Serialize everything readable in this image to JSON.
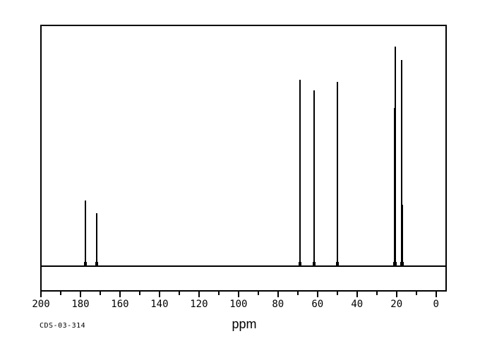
{
  "meta": {
    "sample_id": "CDS-03-314"
  },
  "colors": {
    "line": "#000000",
    "background": "#ffffff"
  },
  "chart_data": {
    "type": "line",
    "subtype": "nmr-spectrum",
    "title": "",
    "xlabel": "ppm",
    "ylabel": "",
    "x_axis": {
      "min": 0,
      "max": 200,
      "reversed": true,
      "major_tick_step": 20,
      "minor_tick_step": 10,
      "tick_labels": [
        "200",
        "180",
        "160",
        "140",
        "120",
        "100",
        "80",
        "60",
        "40",
        "20",
        "0"
      ]
    },
    "grid": false,
    "legend": false,
    "baseline_intensity": 0,
    "peaks": [
      {
        "ppm": 177.5,
        "intensity": 0.3
      },
      {
        "ppm": 171.8,
        "intensity": 0.24
      },
      {
        "ppm": 69.0,
        "intensity": 0.85
      },
      {
        "ppm": 61.8,
        "intensity": 0.8
      },
      {
        "ppm": 50.0,
        "intensity": 0.84
      },
      {
        "ppm": 20.8,
        "intensity": 0.72
      },
      {
        "ppm": 20.5,
        "intensity": 1.0
      },
      {
        "ppm": 17.3,
        "intensity": 0.94
      },
      {
        "ppm": 16.9,
        "intensity": 0.28
      }
    ]
  }
}
